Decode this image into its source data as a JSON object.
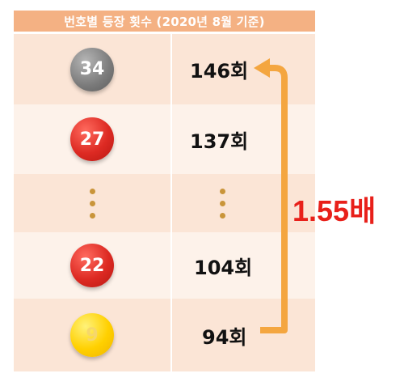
{
  "header": {
    "title": "번호별 등장 횟수 (2020년 8월 기준)"
  },
  "rows": [
    {
      "number": "34",
      "ball_color": "gray",
      "count": "146회"
    },
    {
      "number": "27",
      "ball_color": "red",
      "count": "137회"
    },
    {
      "number": "",
      "ball_color": "",
      "count": ""
    },
    {
      "number": "22",
      "ball_color": "red",
      "count": "104회"
    },
    {
      "number": "9",
      "ball_color": "yellow",
      "count": "94회"
    }
  ],
  "annotation": {
    "ratio": "1.55배"
  },
  "colors": {
    "header_bg": "#f4b183",
    "row_odd": "#fbe5d6",
    "row_even": "#fdf2ea",
    "arrow": "#f4a640",
    "ratio_text": "#e8201a"
  }
}
